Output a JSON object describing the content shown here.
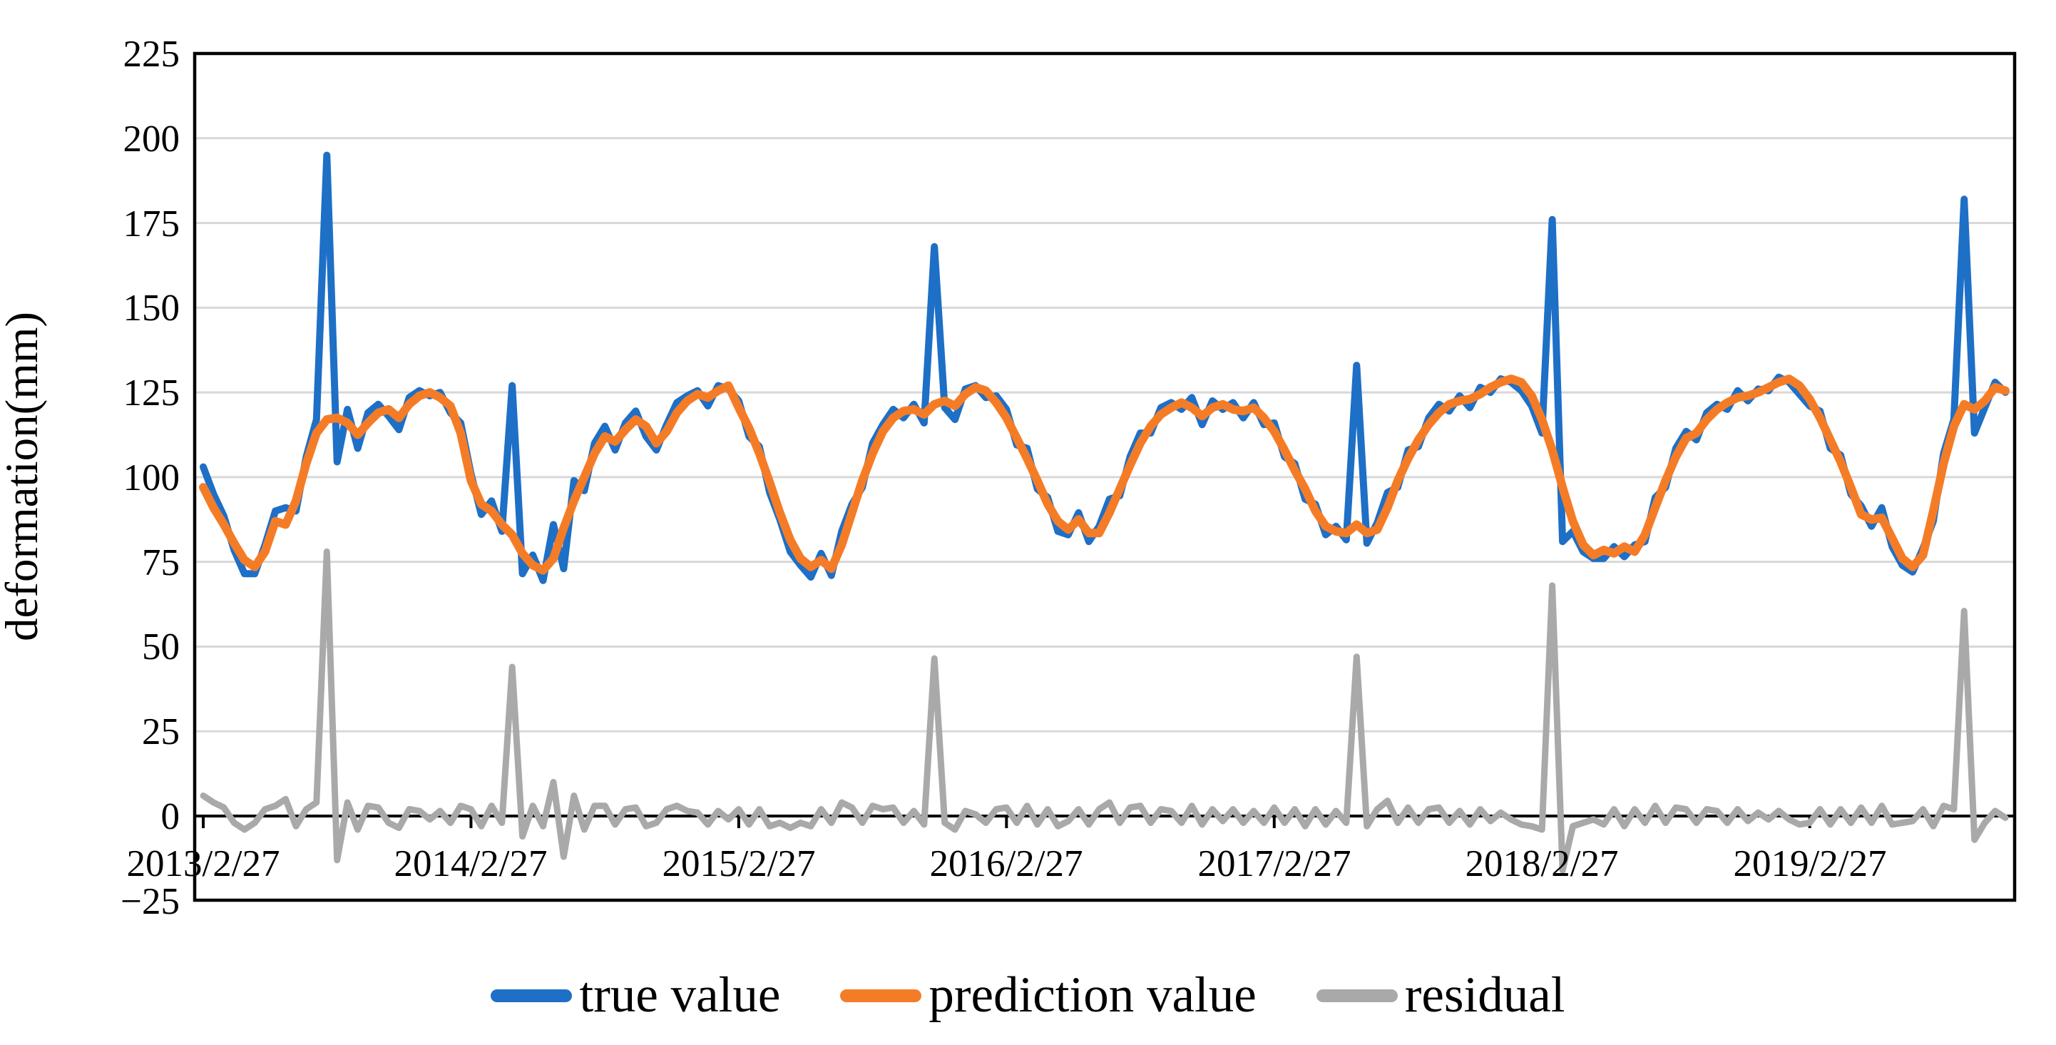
{
  "chart_data": {
    "type": "line",
    "title": "",
    "xlabel": "",
    "ylabel": "deformation(mm)",
    "ylim": [
      -25,
      225
    ],
    "grid": "horizontal",
    "legend_position": "bottom",
    "x_axis": {
      "start_date": "2013/2/27",
      "step_days": 14,
      "tick_labels": [
        "2013/2/27",
        "2014/2/27",
        "2015/2/27",
        "2016/2/27",
        "2017/2/27",
        "2018/2/27",
        "2019/2/27"
      ]
    },
    "y_axis": {
      "tick_values": [
        225,
        200,
        175,
        150,
        125,
        100,
        75,
        50,
        25,
        0,
        -25
      ],
      "tick_labels": [
        "225",
        "200",
        "175",
        "150",
        "125",
        "100",
        "75",
        "50",
        "25",
        "0",
        "−25"
      ],
      "zero_axis_color": "#000000",
      "gridline_color": "#D8D8D8"
    },
    "series": [
      {
        "name": "true value",
        "color": "#1E6FC6",
        "values": [
          103,
          95,
          88.5,
          78.5,
          71.5,
          71.5,
          80,
          90,
          91,
          90,
          106,
          117,
          195,
          104.5,
          120,
          108.5,
          119,
          121.5,
          118,
          114,
          123.5,
          125.5,
          124,
          125,
          119,
          116,
          101,
          89,
          93,
          84,
          127,
          71.5,
          77,
          69.5,
          86,
          73,
          99,
          96,
          110,
          115,
          108,
          116,
          119.5,
          112,
          108,
          115.5,
          122,
          124,
          125.5,
          121,
          127,
          126,
          122.5,
          112,
          109,
          95.5,
          87.5,
          78,
          74,
          70.5,
          77.5,
          71,
          84,
          92,
          97,
          110,
          115.5,
          120,
          117.5,
          121.5,
          116,
          168,
          120.5,
          117,
          126,
          127,
          123.5,
          124,
          120,
          109.5,
          108.5,
          96.5,
          94,
          84,
          83,
          89.5,
          81,
          85.5,
          93.5,
          94.5,
          106,
          113,
          113,
          120.5,
          122,
          120,
          123.5,
          115.5,
          122.5,
          120,
          122,
          117.5,
          122,
          115.5,
          116,
          106,
          104,
          93.5,
          92,
          83,
          85.5,
          81.5,
          133,
          80.5,
          86.5,
          95.5,
          97,
          108,
          109,
          117.5,
          121.5,
          119.5,
          124,
          120.5,
          126.5,
          125,
          129,
          128,
          125.5,
          121,
          113,
          176,
          81,
          84,
          78,
          76,
          76,
          79.5,
          76.5,
          80,
          81,
          94,
          97,
          108.5,
          113.5,
          111,
          119,
          121.5,
          120,
          125.5,
          122.5,
          126,
          125.5,
          129.5,
          128,
          124.5,
          121,
          119.5,
          108.5,
          106.5,
          95,
          91.5,
          85.5,
          91,
          79.5,
          74,
          72,
          79,
          87,
          107,
          117,
          182,
          113,
          120.5,
          128,
          125
        ]
      },
      {
        "name": "prediction value",
        "color": "#F57C27",
        "values": [
          97,
          91,
          86,
          80.5,
          75.5,
          73.5,
          78,
          87,
          86,
          93,
          104,
          113,
          117,
          117.5,
          116,
          112.5,
          116,
          119,
          120,
          117.5,
          121.5,
          124,
          125,
          123.5,
          121,
          113,
          99,
          92,
          90,
          86,
          83,
          77.5,
          74,
          72.5,
          76,
          85,
          93,
          100,
          107,
          112,
          110.5,
          114,
          117,
          115,
          110,
          113.5,
          119,
          122.5,
          124.5,
          123.5,
          125.5,
          127,
          120.5,
          114.5,
          107,
          98.5,
          89.5,
          81.5,
          76,
          73.5,
          75.5,
          73,
          80,
          89.5,
          99,
          107,
          113.5,
          117.5,
          119.5,
          120,
          118.5,
          121.5,
          122.5,
          121,
          124.5,
          126.5,
          125.5,
          122,
          117.5,
          111.5,
          105.5,
          99,
          92,
          87,
          84.5,
          87.5,
          83.5,
          83.5,
          89.5,
          96.5,
          103.5,
          110,
          115,
          118.5,
          120.5,
          122,
          120.5,
          118,
          120.5,
          121.5,
          120,
          119.5,
          120.5,
          117.5,
          113.5,
          108,
          102,
          96.5,
          90,
          85.5,
          84,
          83.5,
          86,
          83.5,
          84.5,
          91,
          99,
          105.5,
          111,
          115.5,
          119,
          121.5,
          122.5,
          123,
          124.5,
          126.5,
          128,
          129,
          128,
          124,
          117,
          108,
          97,
          87,
          80,
          77,
          78.5,
          77.5,
          79.5,
          78,
          83,
          91,
          99,
          106,
          111.5,
          113,
          117,
          120,
          122,
          123.5,
          124,
          125,
          126.5,
          128,
          129,
          127,
          123,
          117.5,
          111,
          104.5,
          97,
          89,
          87.5,
          88,
          82,
          76,
          73.5,
          77,
          90,
          104,
          115,
          121.5,
          120,
          122.5,
          126.5,
          125.5
        ]
      },
      {
        "name": "residual",
        "color": "#A9A9A9",
        "derived_from": "true value minus prediction value",
        "values": [
          6,
          4,
          2.5,
          -2,
          -4,
          -2,
          2,
          3,
          5,
          -3,
          2,
          4,
          78,
          -13,
          4,
          -4,
          3,
          2.5,
          -2,
          -3.5,
          2,
          1.5,
          -1,
          1.5,
          -2,
          3,
          2,
          -3,
          3,
          -2,
          44,
          -6,
          3,
          -3,
          10,
          -12,
          6,
          -4,
          3,
          3,
          -2.5,
          2,
          2.5,
          -3,
          -2,
          2,
          3,
          1.5,
          1,
          -2.5,
          1.5,
          -1,
          2,
          -2.5,
          2,
          -3,
          -2,
          -3.5,
          -2,
          -3,
          2,
          -2,
          4,
          2.5,
          -2,
          3,
          2,
          2.5,
          -2,
          1.5,
          -2.5,
          46.5,
          -2,
          -4,
          1.5,
          0.5,
          -2,
          2,
          2.5,
          -2,
          3,
          -2.5,
          2,
          -3,
          -1.5,
          2,
          -2.5,
          2,
          4,
          -2,
          2.5,
          3,
          -2,
          2,
          1.5,
          -2,
          3,
          -2.5,
          2,
          -1.5,
          2,
          -2,
          1.5,
          -2,
          2.5,
          -2,
          2,
          -3,
          2,
          -2.5,
          1.5,
          -2,
          47,
          -3,
          2,
          4.5,
          -2,
          2.5,
          -2,
          2,
          2.5,
          -2,
          1.5,
          -2.5,
          2,
          -1.5,
          1,
          -1,
          -2.5,
          -3,
          -4,
          68,
          -16,
          -3,
          -2,
          -1,
          -2.5,
          2,
          -3,
          2,
          -2,
          3,
          -2,
          2.5,
          2,
          -2,
          2,
          1.5,
          -2,
          2,
          -1.5,
          1,
          -1,
          1.5,
          -1,
          -2.5,
          -2,
          2,
          -2.5,
          2,
          -2,
          2.5,
          -2,
          3,
          -2.5,
          -2,
          -1.5,
          2,
          -3,
          3,
          2,
          60.5,
          -7,
          -2,
          1.5,
          -0.5
        ]
      }
    ],
    "frame_color": "#000000"
  }
}
